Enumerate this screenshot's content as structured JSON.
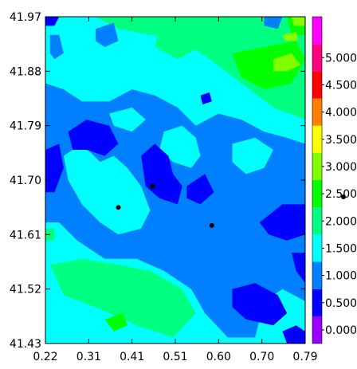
{
  "chart_data": {
    "type": "heatmap",
    "title": "",
    "xlabel": "",
    "ylabel": "",
    "x_ticks": [
      "0.22",
      "0.31",
      "0.41",
      "0.51",
      "0.60",
      "0.70",
      "0.79"
    ],
    "y_ticks": [
      "41.97",
      "41.88",
      "41.79",
      "41.70",
      "41.61",
      "41.52",
      "41.43"
    ],
    "xlim": [
      0.22,
      0.79
    ],
    "ylim": [
      41.43,
      41.97
    ],
    "colorbar": {
      "labels": [
        "0.000",
        "0.500",
        "1.000",
        "1.500",
        "2.000",
        "2.500",
        "3.000",
        "3.500",
        "4.000",
        "4.500",
        "5.000"
      ],
      "range": [
        -0.25,
        5.75
      ],
      "bands": [
        {
          "from": -0.25,
          "to": 0.25,
          "color": "#9900ff"
        },
        {
          "from": 0.25,
          "to": 0.75,
          "color": "#0000ff"
        },
        {
          "from": 0.75,
          "to": 1.25,
          "color": "#0080ff"
        },
        {
          "from": 1.25,
          "to": 1.75,
          "color": "#00ffff"
        },
        {
          "from": 1.75,
          "to": 2.25,
          "color": "#00ff80"
        },
        {
          "from": 2.25,
          "to": 2.75,
          "color": "#00ff00"
        },
        {
          "from": 2.75,
          "to": 3.25,
          "color": "#80ff00"
        },
        {
          "from": 3.25,
          "to": 3.75,
          "color": "#ffff00"
        },
        {
          "from": 3.75,
          "to": 4.25,
          "color": "#ff8000"
        },
        {
          "from": 4.25,
          "to": 4.75,
          "color": "#ff0000"
        },
        {
          "from": 4.75,
          "to": 5.25,
          "color": "#ff0080"
        },
        {
          "from": 5.25,
          "to": 5.75,
          "color": "#ff00ff"
        }
      ]
    },
    "regions": [
      {
        "level": 1.5,
        "color": "#00ffff",
        "points": [
          [
            0.22,
            41.43
          ],
          [
            0.79,
            41.43
          ],
          [
            0.79,
            41.97
          ],
          [
            0.22,
            41.97
          ]
        ]
      },
      {
        "level": 2.0,
        "color": "#00ff80",
        "points": [
          [
            0.33,
            41.97
          ],
          [
            0.79,
            41.97
          ],
          [
            0.79,
            41.8
          ],
          [
            0.72,
            41.82
          ],
          [
            0.65,
            41.86
          ],
          [
            0.58,
            41.9
          ],
          [
            0.52,
            41.93
          ],
          [
            0.45,
            41.94
          ],
          [
            0.38,
            41.95
          ]
        ]
      },
      {
        "level": 2.0,
        "color": "#00ff80",
        "points": [
          [
            0.23,
            41.56
          ],
          [
            0.3,
            41.57
          ],
          [
            0.38,
            41.56
          ],
          [
            0.45,
            41.55
          ],
          [
            0.52,
            41.52
          ],
          [
            0.55,
            41.48
          ],
          [
            0.5,
            41.44
          ],
          [
            0.42,
            41.46
          ],
          [
            0.33,
            41.49
          ],
          [
            0.26,
            41.51
          ]
        ]
      },
      {
        "level": 2.0,
        "color": "#00ff80",
        "points": [
          [
            0.47,
            41.95
          ],
          [
            0.53,
            41.95
          ],
          [
            0.56,
            41.92
          ],
          [
            0.51,
            41.9
          ],
          [
            0.46,
            41.92
          ]
        ]
      },
      {
        "level": 2.0,
        "color": "#00ff80",
        "points": [
          [
            0.55,
            41.61
          ],
          [
            0.59,
            41.61
          ],
          [
            0.6,
            41.58
          ],
          [
            0.56,
            41.57
          ]
        ]
      },
      {
        "level": 2.0,
        "color": "#00ff80",
        "points": [
          [
            0.22,
            41.62
          ],
          [
            0.24,
            41.62
          ],
          [
            0.24,
            41.6
          ],
          [
            0.22,
            41.6
          ]
        ]
      },
      {
        "level": 2.0,
        "color": "#00ff80",
        "points": [
          [
            0.62,
            41.7
          ],
          [
            0.645,
            41.7
          ],
          [
            0.64,
            41.67
          ],
          [
            0.615,
            41.67
          ]
        ]
      },
      {
        "level": 2.0,
        "color": "#00ff80",
        "points": [
          [
            0.5,
            41.75
          ],
          [
            0.53,
            41.74
          ],
          [
            0.52,
            41.72
          ],
          [
            0.5,
            41.73
          ]
        ]
      },
      {
        "level": 2.5,
        "color": "#00ff00",
        "points": [
          [
            0.63,
            41.91
          ],
          [
            0.7,
            41.92
          ],
          [
            0.77,
            41.93
          ],
          [
            0.79,
            41.9
          ],
          [
            0.76,
            41.86
          ],
          [
            0.7,
            41.85
          ],
          [
            0.65,
            41.87
          ]
        ]
      },
      {
        "level": 2.5,
        "color": "#00ff00",
        "points": [
          [
            0.75,
            41.97
          ],
          [
            0.79,
            41.97
          ],
          [
            0.79,
            41.94
          ],
          [
            0.76,
            41.94
          ]
        ]
      },
      {
        "level": 2.5,
        "color": "#00ff00",
        "points": [
          [
            0.35,
            41.47
          ],
          [
            0.39,
            41.48
          ],
          [
            0.4,
            41.46
          ],
          [
            0.37,
            41.45
          ]
        ]
      },
      {
        "level": 3.0,
        "color": "#80ff00",
        "points": [
          [
            0.72,
            41.9
          ],
          [
            0.76,
            41.91
          ],
          [
            0.78,
            41.89
          ],
          [
            0.75,
            41.88
          ],
          [
            0.72,
            41.88
          ]
        ]
      },
      {
        "level": 3.0,
        "color": "#80ff00",
        "points": [
          [
            0.76,
            41.97
          ],
          [
            0.79,
            41.97
          ],
          [
            0.79,
            41.955
          ],
          [
            0.765,
            41.955
          ]
        ]
      },
      {
        "level": 3.0,
        "color": "#80ff00",
        "points": [
          [
            0.74,
            41.94
          ],
          [
            0.77,
            41.945
          ],
          [
            0.775,
            41.93
          ],
          [
            0.745,
            41.93
          ]
        ]
      },
      {
        "level": 1.0,
        "color": "#0080ff",
        "points": [
          [
            0.22,
            41.86
          ],
          [
            0.26,
            41.85
          ],
          [
            0.3,
            41.83
          ],
          [
            0.36,
            41.83
          ],
          [
            0.41,
            41.85
          ],
          [
            0.46,
            41.84
          ],
          [
            0.51,
            41.82
          ],
          [
            0.55,
            41.79
          ],
          [
            0.6,
            41.81
          ],
          [
            0.65,
            41.8
          ],
          [
            0.7,
            41.78
          ],
          [
            0.75,
            41.77
          ],
          [
            0.79,
            41.76
          ],
          [
            0.79,
            41.5
          ],
          [
            0.74,
            41.52
          ],
          [
            0.7,
            41.5
          ],
          [
            0.68,
            41.44
          ],
          [
            0.62,
            41.44
          ],
          [
            0.57,
            41.48
          ],
          [
            0.54,
            41.52
          ],
          [
            0.48,
            41.55
          ],
          [
            0.42,
            41.57
          ],
          [
            0.35,
            41.57
          ],
          [
            0.29,
            41.6
          ],
          [
            0.25,
            41.63
          ],
          [
            0.22,
            41.63
          ]
        ]
      },
      {
        "level": 1.0,
        "color": "#0080ff",
        "points": [
          [
            0.23,
            41.94
          ],
          [
            0.25,
            41.94
          ],
          [
            0.26,
            41.91
          ],
          [
            0.24,
            41.9
          ],
          [
            0.23,
            41.91
          ]
        ]
      },
      {
        "level": 1.0,
        "color": "#0080ff",
        "points": [
          [
            0.33,
            41.95
          ],
          [
            0.37,
            41.96
          ],
          [
            0.38,
            41.93
          ],
          [
            0.35,
            41.92
          ],
          [
            0.33,
            41.93
          ]
        ]
      },
      {
        "level": 1.0,
        "color": "#0080ff",
        "points": [
          [
            0.7,
            41.97
          ],
          [
            0.74,
            41.97
          ],
          [
            0.73,
            41.95
          ],
          [
            0.7,
            41.955
          ]
        ]
      },
      {
        "level": 1.5,
        "color": "#00ffff",
        "points": [
          [
            0.26,
            41.74
          ],
          [
            0.3,
            41.76
          ],
          [
            0.34,
            41.73
          ],
          [
            0.37,
            41.74
          ],
          [
            0.4,
            41.72
          ],
          [
            0.43,
            41.69
          ],
          [
            0.45,
            41.65
          ],
          [
            0.43,
            41.62
          ],
          [
            0.38,
            41.61
          ],
          [
            0.34,
            41.63
          ],
          [
            0.3,
            41.66
          ],
          [
            0.27,
            41.7
          ]
        ]
      },
      {
        "level": 1.5,
        "color": "#00ffff",
        "points": [
          [
            0.48,
            41.78
          ],
          [
            0.52,
            41.79
          ],
          [
            0.55,
            41.77
          ],
          [
            0.56,
            41.74
          ],
          [
            0.54,
            41.72
          ],
          [
            0.5,
            41.73
          ],
          [
            0.47,
            41.75
          ]
        ]
      },
      {
        "level": 1.5,
        "color": "#00ffff",
        "points": [
          [
            0.63,
            41.76
          ],
          [
            0.68,
            41.77
          ],
          [
            0.72,
            41.75
          ],
          [
            0.7,
            41.72
          ],
          [
            0.66,
            41.71
          ],
          [
            0.63,
            41.73
          ]
        ]
      },
      {
        "level": 1.5,
        "color": "#00ffff",
        "points": [
          [
            0.36,
            41.81
          ],
          [
            0.41,
            41.82
          ],
          [
            0.44,
            41.8
          ],
          [
            0.41,
            41.78
          ],
          [
            0.37,
            41.79
          ]
        ]
      },
      {
        "level": 0.5,
        "color": "#0000ff",
        "points": [
          [
            0.27,
            41.78
          ],
          [
            0.31,
            41.8
          ],
          [
            0.36,
            41.79
          ],
          [
            0.38,
            41.76
          ],
          [
            0.35,
            41.74
          ],
          [
            0.31,
            41.75
          ],
          [
            0.28,
            41.75
          ]
        ]
      },
      {
        "level": 0.5,
        "color": "#0000ff",
        "points": [
          [
            0.22,
            41.75
          ],
          [
            0.25,
            41.76
          ],
          [
            0.26,
            41.72
          ],
          [
            0.24,
            41.68
          ],
          [
            0.22,
            41.68
          ]
        ]
      },
      {
        "level": 0.5,
        "color": "#0000ff",
        "points": [
          [
            0.43,
            41.74
          ],
          [
            0.46,
            41.76
          ],
          [
            0.49,
            41.74
          ],
          [
            0.5,
            41.71
          ],
          [
            0.52,
            41.69
          ],
          [
            0.51,
            41.66
          ],
          [
            0.47,
            41.67
          ],
          [
            0.44,
            41.69
          ]
        ]
      },
      {
        "level": 0.5,
        "color": "#0000ff",
        "points": [
          [
            0.53,
            41.69
          ],
          [
            0.57,
            41.71
          ],
          [
            0.59,
            41.68
          ],
          [
            0.56,
            41.66
          ],
          [
            0.53,
            41.67
          ]
        ]
      },
      {
        "level": 0.5,
        "color": "#0000ff",
        "points": [
          [
            0.69,
            41.63
          ],
          [
            0.74,
            41.66
          ],
          [
            0.79,
            41.66
          ],
          [
            0.79,
            41.61
          ],
          [
            0.75,
            41.6
          ],
          [
            0.71,
            41.61
          ]
        ]
      },
      {
        "level": 0.5,
        "color": "#0000ff",
        "points": [
          [
            0.76,
            41.58
          ],
          [
            0.79,
            41.58
          ],
          [
            0.79,
            41.53
          ],
          [
            0.77,
            41.55
          ]
        ]
      },
      {
        "level": 0.5,
        "color": "#0000ff",
        "points": [
          [
            0.63,
            41.52
          ],
          [
            0.68,
            41.53
          ],
          [
            0.73,
            41.51
          ],
          [
            0.75,
            41.48
          ],
          [
            0.72,
            41.46
          ],
          [
            0.66,
            41.47
          ],
          [
            0.63,
            41.49
          ]
        ]
      },
      {
        "level": 0.5,
        "color": "#0000ff",
        "points": [
          [
            0.74,
            41.45
          ],
          [
            0.77,
            41.46
          ],
          [
            0.79,
            41.45
          ],
          [
            0.79,
            41.43
          ],
          [
            0.75,
            41.43
          ]
        ]
      },
      {
        "level": 0.5,
        "color": "#0000ff",
        "points": [
          [
            0.22,
            41.97
          ],
          [
            0.25,
            41.97
          ],
          [
            0.24,
            41.955
          ],
          [
            0.22,
            41.955
          ]
        ]
      },
      {
        "level": 0.5,
        "color": "#0000ff",
        "points": [
          [
            0.56,
            41.84
          ],
          [
            0.58,
            41.845
          ],
          [
            0.585,
            41.83
          ],
          [
            0.565,
            41.825
          ]
        ]
      }
    ],
    "markers": [
      {
        "x": 0.38,
        "y": 41.655
      },
      {
        "x": 0.585,
        "y": 41.625
      },
      {
        "x": 0.455,
        "y": 41.69
      }
    ]
  }
}
